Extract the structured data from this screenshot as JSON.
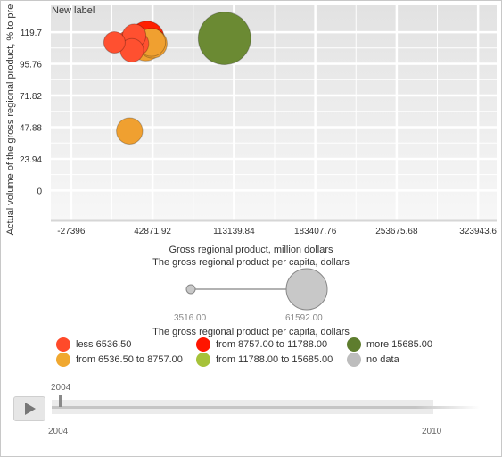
{
  "chart_data": {
    "type": "bubble",
    "title": "New label",
    "ylabel": "Actual volume of the gross regional product, % to pre",
    "xlabel": "Gross regional product, million dollars",
    "size_label": "The gross regional product per capita, dollars",
    "x_ticks": [
      "-27396",
      "42871.92",
      "113139.84",
      "183407.76",
      "253675.68",
      "323943.6"
    ],
    "y_ticks": [
      "119.7",
      "95.76",
      "71.82",
      "47.88",
      "23.94",
      "0"
    ],
    "xlim": [
      -45000,
      340000
    ],
    "ylim": [
      -22,
      140
    ],
    "points": [
      {
        "x": 38000,
        "y": 115,
        "size": 13000,
        "color": "#ff2000"
      },
      {
        "x": 37000,
        "y": 110,
        "size": 11000,
        "color": "#f0a030"
      },
      {
        "x": 43000,
        "y": 111,
        "size": 9000,
        "color": "#f0a030"
      },
      {
        "x": 10000,
        "y": 112,
        "size": 5000,
        "color": "#ff5030"
      },
      {
        "x": 22000,
        "y": 112,
        "size": 6000,
        "color": "#ff5030"
      },
      {
        "x": 27000,
        "y": 117,
        "size": 6000,
        "color": "#ff5030"
      },
      {
        "x": 29000,
        "y": 111,
        "size": 6500,
        "color": "#ff5030"
      },
      {
        "x": 25000,
        "y": 106,
        "size": 6000,
        "color": "#ff5030"
      },
      {
        "x": 42000,
        "y": 112,
        "size": 8500,
        "color": "#f0a030"
      },
      {
        "x": 105000,
        "y": 115,
        "size": 30000,
        "color": "#6b8a33"
      },
      {
        "x": 23000,
        "y": 45,
        "size": 7500,
        "color": "#f0a030"
      }
    ]
  },
  "size_legend": {
    "title": "The gross regional product per capita, dollars",
    "min": "3516.00",
    "max": "61592.00"
  },
  "legend": [
    {
      "label": "less 6536.50",
      "color": "#ff4a2a"
    },
    {
      "label": "from 8757.00 to 11788.00",
      "color": "#ff1500"
    },
    {
      "label": "more 15685.00",
      "color": "#5e7d2e"
    },
    {
      "label": "from 6536.50 to 8757.00",
      "color": "#f0a830"
    },
    {
      "label": "from 11788.00 to 15685.00",
      "color": "#a6c23a"
    },
    {
      "label": "no data",
      "color": "#bdbdbd"
    }
  ],
  "timeline": {
    "current": "2004",
    "start": "2004",
    "end": "2010"
  }
}
